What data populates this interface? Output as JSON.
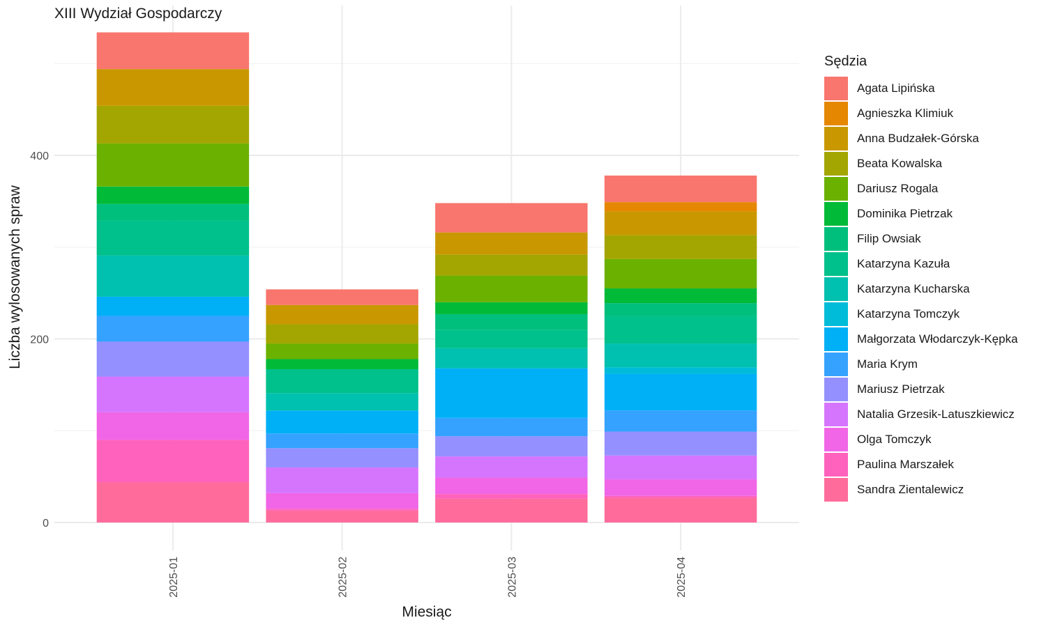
{
  "chart_data": {
    "type": "bar",
    "stacked": true,
    "title": "XIII Wydział Gospodarczy",
    "xlabel": "Miesiąc",
    "ylabel": "Liczba wylosowanych spraw",
    "categories": [
      "2025-01",
      "2025-02",
      "2025-03",
      "2025-04"
    ],
    "ylim": [
      0,
      560
    ],
    "yticks": [
      0,
      200,
      400
    ],
    "grid": true,
    "legend": {
      "title": "Sędzia",
      "position": "right"
    },
    "series": [
      {
        "name": "Agata Lipińska",
        "color": "#F8766D",
        "values": [
          40,
          17,
          32,
          29
        ]
      },
      {
        "name": "Agnieszka Klimiuk",
        "color": "#E58700",
        "values": [
          0,
          0,
          0,
          10
        ]
      },
      {
        "name": "Anna Budzałek-Górska",
        "color": "#C99800",
        "values": [
          40,
          21,
          24,
          26
        ]
      },
      {
        "name": "Beata Kowalska",
        "color": "#A3A500",
        "values": [
          41,
          21,
          23,
          26
        ]
      },
      {
        "name": "Dariusz Rogala",
        "color": "#6BB100",
        "values": [
          47,
          17,
          29,
          32
        ]
      },
      {
        "name": "Dominika Pietrzak",
        "color": "#00BA38",
        "values": [
          19,
          11,
          13,
          16
        ]
      },
      {
        "name": "Filip Owsiak",
        "color": "#00BF7D",
        "values": [
          18,
          0,
          17,
          14
        ]
      },
      {
        "name": "Katarzyna Kazuła",
        "color": "#00C08B",
        "values": [
          38,
          26,
          20,
          30
        ]
      },
      {
        "name": "Katarzyna Kucharska",
        "color": "#00C0AF",
        "values": [
          45,
          19,
          22,
          26
        ]
      },
      {
        "name": "Katarzyna Tomczyk",
        "color": "#00BCD8",
        "values": [
          0,
          0,
          0,
          7
        ]
      },
      {
        "name": "Małgorzata Włodarczyk-Kępka",
        "color": "#00B0F6",
        "values": [
          21,
          25,
          54,
          40
        ]
      },
      {
        "name": "Maria Krym",
        "color": "#35A2FF",
        "values": [
          28,
          16,
          20,
          23
        ]
      },
      {
        "name": "Mariusz Pietrzak",
        "color": "#9590FF",
        "values": [
          38,
          21,
          22,
          26
        ]
      },
      {
        "name": "Natalia Grzesik-Latuszkiewicz",
        "color": "#D575FE",
        "values": [
          39,
          28,
          23,
          26
        ]
      },
      {
        "name": "Olga Tomczyk",
        "color": "#F066E6",
        "values": [
          30,
          17,
          18,
          18
        ]
      },
      {
        "name": "Paulina Marszałek",
        "color": "#FF62BC",
        "values": [
          46,
          2,
          5,
          2
        ]
      },
      {
        "name": "Sandra Zientalewicz",
        "color": "#FF6C9C",
        "values": [
          44,
          13,
          26,
          27
        ]
      }
    ]
  }
}
